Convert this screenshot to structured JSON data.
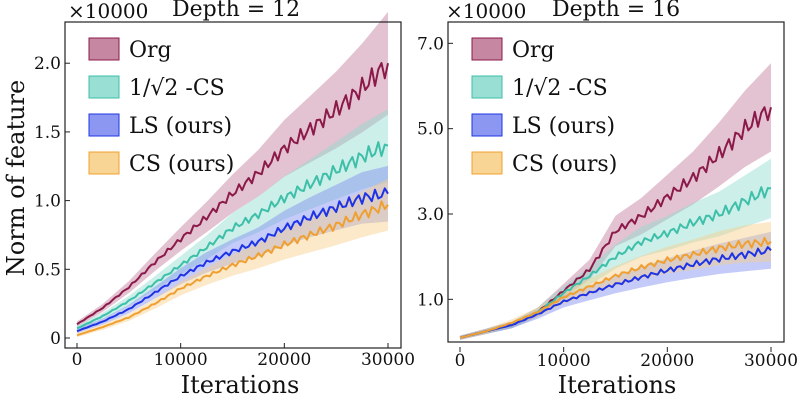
{
  "chart_data": [
    {
      "type": "line",
      "title": "Depth = 12",
      "xlabel": "Iterations",
      "ylabel": "Norm of feature",
      "scale_label": "×10000",
      "xlim": [
        0,
        30000
      ],
      "ylim": [
        0,
        2.3
      ],
      "xticks": [
        0,
        10000,
        20000,
        30000
      ],
      "xtick_labels": [
        "0",
        "10000",
        "20000",
        "30000"
      ],
      "yticks": [
        0,
        0.5,
        1.0,
        1.5,
        2.0
      ],
      "ytick_labels": [
        "0",
        "0.5",
        "1.0",
        "1.5",
        "2.0"
      ],
      "legend_position": "top-left",
      "grid": false,
      "series": [
        {
          "name": "Org",
          "color": "#8b1a4a",
          "band_color": "#c07a98",
          "x": [
            0,
            2500,
            5000,
            7500,
            10000,
            12500,
            15000,
            17500,
            20000,
            22500,
            25000,
            27500,
            30000
          ],
          "y": [
            0.1,
            0.22,
            0.37,
            0.55,
            0.72,
            0.88,
            1.05,
            1.2,
            1.38,
            1.52,
            1.66,
            1.82,
            2.0
          ]
        },
        {
          "name": "1/√2 -CS",
          "color": "#3dbfa9",
          "band_color": "#8fdccf",
          "x": [
            0,
            2500,
            5000,
            7500,
            10000,
            12500,
            15000,
            17500,
            20000,
            22500,
            25000,
            27500,
            30000
          ],
          "y": [
            0.07,
            0.16,
            0.27,
            0.4,
            0.53,
            0.66,
            0.8,
            0.9,
            1.02,
            1.12,
            1.22,
            1.32,
            1.4
          ]
        },
        {
          "name": "LS (ours)",
          "color": "#1e33e6",
          "band_color": "#7f8cf0",
          "x": [
            0,
            2500,
            5000,
            7500,
            10000,
            12500,
            15000,
            17500,
            20000,
            22500,
            25000,
            27500,
            30000
          ],
          "y": [
            0.05,
            0.12,
            0.21,
            0.33,
            0.45,
            0.55,
            0.63,
            0.7,
            0.8,
            0.88,
            0.95,
            1.02,
            1.05
          ]
        },
        {
          "name": "CS (ours)",
          "color": "#f0a030",
          "band_color": "#f7cf8a",
          "x": [
            0,
            2500,
            5000,
            7500,
            10000,
            12500,
            15000,
            17500,
            20000,
            22500,
            25000,
            27500,
            30000
          ],
          "y": [
            0.02,
            0.08,
            0.15,
            0.25,
            0.36,
            0.45,
            0.53,
            0.6,
            0.68,
            0.75,
            0.82,
            0.9,
            0.97
          ]
        }
      ]
    },
    {
      "type": "line",
      "title": "Depth = 16",
      "xlabel": "Iterations",
      "ylabel": "",
      "scale_label": "×10000",
      "xlim": [
        0,
        30000
      ],
      "ylim": [
        0,
        7.5
      ],
      "xticks": [
        0,
        10000,
        20000,
        30000
      ],
      "xtick_labels": [
        "0",
        "10000",
        "20000",
        "30000"
      ],
      "yticks": [
        1.0,
        3.0,
        5.0,
        7.0
      ],
      "ytick_labels": [
        "1.0",
        "3.0",
        "5.0",
        "7.0"
      ],
      "legend_position": "top-left",
      "grid": false,
      "series": [
        {
          "name": "Org",
          "color": "#8b1a4a",
          "band_color": "#c07a98",
          "x": [
            0,
            2500,
            5000,
            7500,
            10000,
            12500,
            15000,
            17500,
            20000,
            22500,
            25000,
            27500,
            30000
          ],
          "y": [
            0.1,
            0.25,
            0.4,
            0.7,
            1.2,
            1.7,
            2.6,
            2.95,
            3.4,
            3.85,
            4.4,
            5.0,
            5.5
          ]
        },
        {
          "name": "1/√2 -CS",
          "color": "#3dbfa9",
          "band_color": "#8fdccf",
          "x": [
            0,
            2500,
            5000,
            7500,
            10000,
            12500,
            15000,
            17500,
            20000,
            22500,
            25000,
            27500,
            30000
          ],
          "y": [
            0.1,
            0.25,
            0.4,
            0.7,
            1.15,
            1.55,
            2.0,
            2.35,
            2.55,
            2.8,
            3.0,
            3.3,
            3.6
          ]
        },
        {
          "name": "LS (ours)",
          "color": "#1e33e6",
          "band_color": "#7f8cf0",
          "x": [
            0,
            2500,
            5000,
            7500,
            10000,
            12500,
            15000,
            17500,
            20000,
            22500,
            25000,
            27500,
            30000
          ],
          "y": [
            0.1,
            0.25,
            0.4,
            0.65,
            0.95,
            1.15,
            1.35,
            1.52,
            1.68,
            1.82,
            1.95,
            2.05,
            2.15
          ]
        },
        {
          "name": "CS (ours)",
          "color": "#f0a030",
          "band_color": "#f7cf8a",
          "x": [
            0,
            2500,
            5000,
            7500,
            10000,
            12500,
            15000,
            17500,
            20000,
            22500,
            25000,
            27500,
            30000
          ],
          "y": [
            0.1,
            0.25,
            0.45,
            0.7,
            1.05,
            1.3,
            1.55,
            1.75,
            1.92,
            2.05,
            2.2,
            2.3,
            2.35
          ]
        }
      ]
    }
  ]
}
